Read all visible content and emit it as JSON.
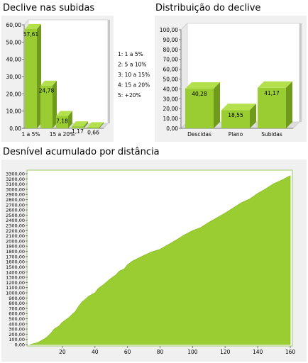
{
  "headings": {
    "chart1": "Declive nas subidas",
    "chart2": "Distribuição do declive",
    "chart3": "Desnível acumulado por distância"
  },
  "colors": {
    "bar_face": "#9acd32",
    "bar_side": "#6f9a1c",
    "bar_top": "#b4e04e",
    "area_fill": "#9acd32",
    "panel_bg": "#f0f0f0",
    "wall": "#e8e8e8",
    "axis": "#9ac86a"
  },
  "chart_data": [
    {
      "type": "bar",
      "title": "Declive nas subidas",
      "categories": [
        "1",
        "2",
        "3",
        "4",
        "5"
      ],
      "x_tick_labels": [
        "1 a 5%",
        "",
        "15 a 20%",
        "",
        ""
      ],
      "values": [
        57.61,
        24.78,
        7.18,
        1.17,
        0.66
      ],
      "value_labels": [
        "57,61",
        "24,78",
        "7,18",
        "1,17",
        "0,66"
      ],
      "ylim": [
        0,
        60
      ],
      "y_ticks": [
        "0,00",
        "10,00",
        "20,00",
        "30,00",
        "40,00",
        "50,00",
        "60,00"
      ],
      "legend": [
        "1:  1 a 5%",
        "2:  5 a 10%",
        "3:  10 a 15%",
        "4:  15 a 20%",
        "5:  +20%"
      ],
      "legend_position": "right"
    },
    {
      "type": "bar",
      "title": "Distribuição do declive",
      "categories": [
        "Descidas",
        "Plano",
        "Subidas"
      ],
      "values": [
        40.28,
        18.55,
        41.17
      ],
      "value_labels": [
        "40,28",
        "18,55",
        "41,17"
      ],
      "ylim": [
        0,
        100
      ],
      "y_ticks": [
        "0,00",
        "10,00",
        "20,00",
        "30,00",
        "40,00",
        "50,00",
        "60,00",
        "70,00",
        "80,00",
        "90,00",
        "100,00"
      ]
    },
    {
      "type": "area",
      "title": "Desnível acumulado por distância",
      "xlim": [
        0,
        160
      ],
      "ylim": [
        0,
        3300
      ],
      "x_ticks": [
        "20",
        "40",
        "60",
        "80",
        "100",
        "120",
        "140",
        "160"
      ],
      "y_ticks": [
        "0,00",
        "100,00",
        "200,00",
        "300,00",
        "400,00",
        "500,00",
        "600,00",
        "700,00",
        "800,00",
        "900,00",
        "1000,00",
        "1100,00",
        "1200,00",
        "1300,00",
        "1400,00",
        "1500,00",
        "1600,00",
        "1700,00",
        "1800,00",
        "1900,00",
        "2000,00",
        "2100,00",
        "2200,00",
        "2300,00",
        "2400,00",
        "2500,00",
        "2600,00",
        "2700,00",
        "2800,00",
        "2900,00",
        "3000,00",
        "3100,00",
        "3200,00",
        "3300,00"
      ],
      "series": [
        {
          "x": [
            0,
            5,
            10,
            13,
            15,
            18,
            20,
            24,
            26,
            28,
            30,
            32,
            35,
            36,
            40,
            42,
            45,
            48,
            50,
            53,
            55,
            58,
            60,
            63,
            66,
            70,
            75,
            80,
            85,
            90,
            95,
            100,
            105,
            110,
            115,
            120,
            125,
            130,
            135,
            140,
            145,
            150,
            155,
            158,
            160
          ],
          "y": [
            0,
            40,
            130,
            220,
            300,
            360,
            430,
            520,
            580,
            640,
            740,
            820,
            900,
            930,
            1000,
            1080,
            1150,
            1230,
            1280,
            1350,
            1420,
            1460,
            1540,
            1610,
            1660,
            1720,
            1790,
            1840,
            1930,
            2020,
            2120,
            2200,
            2260,
            2360,
            2450,
            2540,
            2640,
            2740,
            2810,
            2920,
            3010,
            3110,
            3180,
            3230,
            3260
          ]
        }
      ]
    }
  ]
}
